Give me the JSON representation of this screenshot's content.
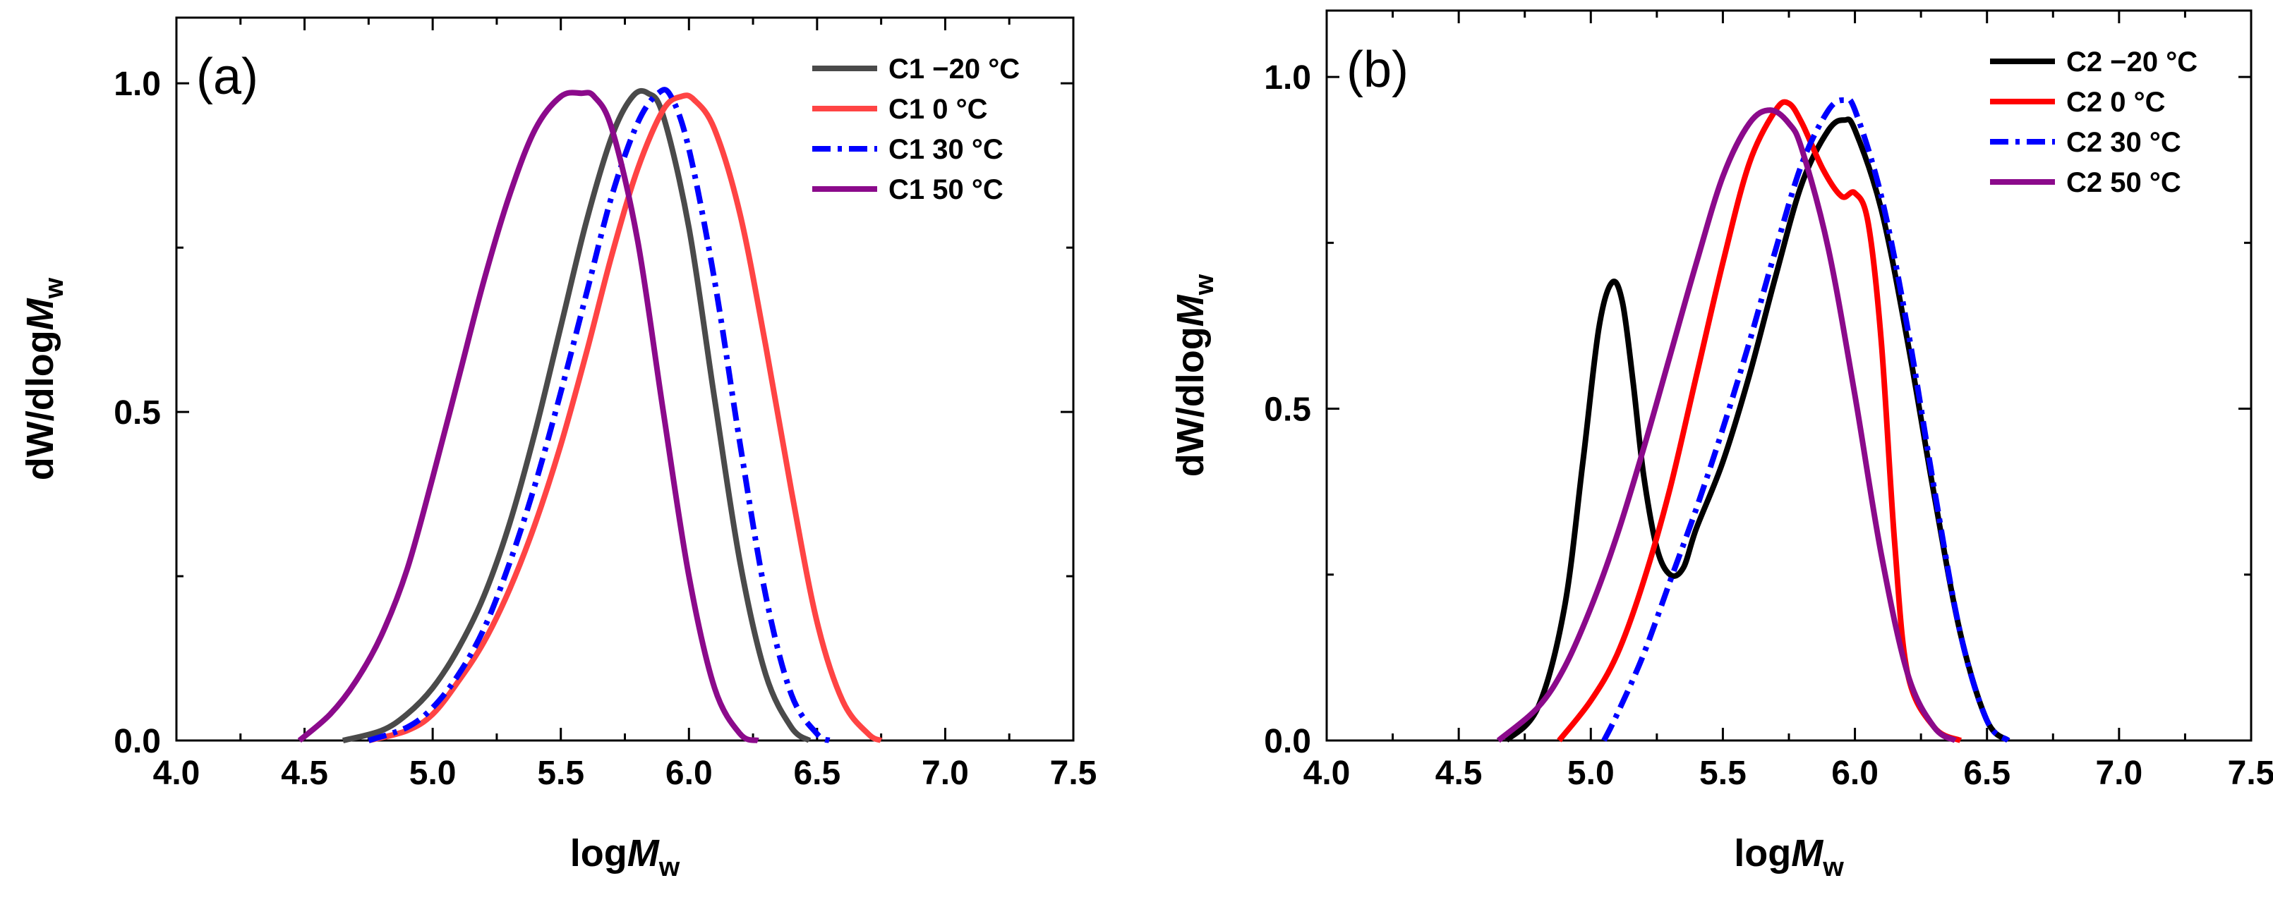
{
  "chart_data": [
    {
      "type": "line",
      "panel_label": "(a)",
      "xlabel_prefix": "log",
      "xlabel_italic": "M",
      "xlabel_sub": "w",
      "ylabel_prefix": "dW/dlog",
      "ylabel_italic": "M",
      "ylabel_sub": "w",
      "xlim": [
        4.0,
        7.5
      ],
      "ylim": [
        0.0,
        1.1
      ],
      "xticks": [
        4.0,
        4.5,
        5.0,
        5.5,
        6.0,
        6.5,
        7.0,
        7.5
      ],
      "xtick_labels": [
        "4.0",
        "4.5",
        "5.0",
        "5.5",
        "6.0",
        "6.5",
        "7.0",
        "7.5"
      ],
      "yticks": [
        0.0,
        0.5,
        1.0
      ],
      "ytick_labels": [
        "0.0",
        "0.5",
        "1.0"
      ],
      "legend_position": "top-right",
      "series": [
        {
          "name": "C1 −20 °C",
          "color": "#4a4a4a",
          "dash": "solid",
          "x": [
            4.65,
            4.8,
            4.9,
            5.0,
            5.1,
            5.2,
            5.3,
            5.4,
            5.5,
            5.6,
            5.7,
            5.78,
            5.84,
            5.9,
            6.0,
            6.1,
            6.2,
            6.3,
            6.4,
            6.47
          ],
          "y": [
            0.0,
            0.015,
            0.04,
            0.08,
            0.14,
            0.22,
            0.33,
            0.47,
            0.63,
            0.79,
            0.92,
            0.98,
            0.985,
            0.95,
            0.78,
            0.52,
            0.27,
            0.1,
            0.02,
            0.0
          ]
        },
        {
          "name": "C1 0 °C",
          "color": "#ff4444",
          "dash": "solid",
          "x": [
            4.75,
            4.9,
            5.0,
            5.1,
            5.2,
            5.3,
            5.4,
            5.5,
            5.6,
            5.7,
            5.8,
            5.9,
            5.97,
            6.02,
            6.1,
            6.2,
            6.3,
            6.4,
            6.5,
            6.6,
            6.7,
            6.75
          ],
          "y": [
            0.0,
            0.015,
            0.04,
            0.09,
            0.15,
            0.23,
            0.33,
            0.45,
            0.59,
            0.74,
            0.87,
            0.96,
            0.98,
            0.975,
            0.93,
            0.8,
            0.6,
            0.38,
            0.18,
            0.06,
            0.01,
            0.0
          ]
        },
        {
          "name": "C1 30 °C",
          "color": "#0000ff",
          "dash": "dashdot",
          "x": [
            4.75,
            4.9,
            5.0,
            5.1,
            5.2,
            5.3,
            5.4,
            5.5,
            5.6,
            5.7,
            5.8,
            5.88,
            5.93,
            6.0,
            6.1,
            6.2,
            6.3,
            6.4,
            6.5,
            6.55
          ],
          "y": [
            0.0,
            0.02,
            0.05,
            0.1,
            0.17,
            0.27,
            0.39,
            0.53,
            0.68,
            0.83,
            0.94,
            0.985,
            0.98,
            0.9,
            0.7,
            0.45,
            0.22,
            0.07,
            0.01,
            0.0
          ]
        },
        {
          "name": "C1 50 °C",
          "color": "#8b0a8b",
          "dash": "solid",
          "x": [
            4.48,
            4.6,
            4.7,
            4.8,
            4.9,
            5.0,
            5.1,
            5.2,
            5.3,
            5.4,
            5.5,
            5.58,
            5.63,
            5.7,
            5.8,
            5.9,
            6.0,
            6.1,
            6.2,
            6.27
          ],
          "y": [
            0.0,
            0.04,
            0.09,
            0.16,
            0.26,
            0.4,
            0.55,
            0.7,
            0.83,
            0.93,
            0.98,
            0.985,
            0.98,
            0.93,
            0.76,
            0.5,
            0.25,
            0.08,
            0.01,
            0.0
          ]
        }
      ]
    },
    {
      "type": "line",
      "panel_label": "(b)",
      "xlabel_prefix": "log",
      "xlabel_italic": "M",
      "xlabel_sub": "w",
      "ylabel_prefix": "dW/dlog",
      "ylabel_italic": "M",
      "ylabel_sub": "w",
      "xlim": [
        4.0,
        7.5
      ],
      "ylim": [
        0.0,
        1.1
      ],
      "xticks": [
        4.0,
        4.5,
        5.0,
        5.5,
        6.0,
        6.5,
        7.0,
        7.5
      ],
      "xtick_labels": [
        "4.0",
        "4.5",
        "5.0",
        "5.5",
        "6.0",
        "6.5",
        "7.0",
        "7.5"
      ],
      "yticks": [
        0.0,
        0.5,
        1.0
      ],
      "ytick_labels": [
        "0.0",
        "0.5",
        "1.0"
      ],
      "legend_position": "top-right",
      "series": [
        {
          "name": "C2 −20 °C",
          "color": "#000000",
          "dash": "solid",
          "x": [
            4.68,
            4.8,
            4.9,
            4.97,
            5.03,
            5.08,
            5.12,
            5.16,
            5.2,
            5.25,
            5.3,
            5.35,
            5.4,
            5.5,
            5.6,
            5.7,
            5.8,
            5.9,
            5.96,
            6.0,
            6.1,
            6.2,
            6.3,
            6.4,
            6.5,
            6.58
          ],
          "y": [
            0.0,
            0.05,
            0.2,
            0.42,
            0.62,
            0.69,
            0.66,
            0.54,
            0.4,
            0.29,
            0.25,
            0.26,
            0.32,
            0.42,
            0.55,
            0.7,
            0.84,
            0.92,
            0.935,
            0.92,
            0.8,
            0.6,
            0.37,
            0.16,
            0.03,
            0.0
          ]
        },
        {
          "name": "C2 0 °C",
          "color": "#ff0000",
          "dash": "solid",
          "x": [
            4.88,
            5.0,
            5.1,
            5.2,
            5.3,
            5.4,
            5.5,
            5.6,
            5.7,
            5.75,
            5.8,
            5.88,
            5.95,
            6.0,
            6.05,
            6.1,
            6.15,
            6.2,
            6.3,
            6.4
          ],
          "y": [
            0.0,
            0.06,
            0.13,
            0.24,
            0.38,
            0.55,
            0.72,
            0.87,
            0.95,
            0.96,
            0.93,
            0.86,
            0.82,
            0.825,
            0.78,
            0.6,
            0.3,
            0.1,
            0.02,
            0.0
          ]
        },
        {
          "name": "C2 30 °C",
          "color": "#0000ff",
          "dash": "dashdot",
          "x": [
            5.05,
            5.1,
            5.2,
            5.3,
            5.4,
            5.5,
            5.6,
            5.7,
            5.8,
            5.9,
            5.96,
            6.0,
            6.1,
            6.2,
            6.3,
            6.4,
            6.5,
            6.58
          ],
          "y": [
            0.0,
            0.04,
            0.13,
            0.24,
            0.35,
            0.47,
            0.6,
            0.74,
            0.87,
            0.95,
            0.965,
            0.95,
            0.82,
            0.62,
            0.38,
            0.16,
            0.03,
            0.0
          ]
        },
        {
          "name": "C2 50 °C",
          "color": "#8b0a8b",
          "dash": "solid",
          "x": [
            4.65,
            4.8,
            4.9,
            5.0,
            5.1,
            5.2,
            5.3,
            5.4,
            5.5,
            5.6,
            5.68,
            5.75,
            5.8,
            5.9,
            6.0,
            6.1,
            6.2,
            6.3,
            6.38
          ],
          "y": [
            0.0,
            0.05,
            0.11,
            0.2,
            0.31,
            0.44,
            0.58,
            0.72,
            0.85,
            0.93,
            0.95,
            0.93,
            0.89,
            0.74,
            0.52,
            0.28,
            0.1,
            0.02,
            0.0
          ]
        }
      ]
    }
  ]
}
